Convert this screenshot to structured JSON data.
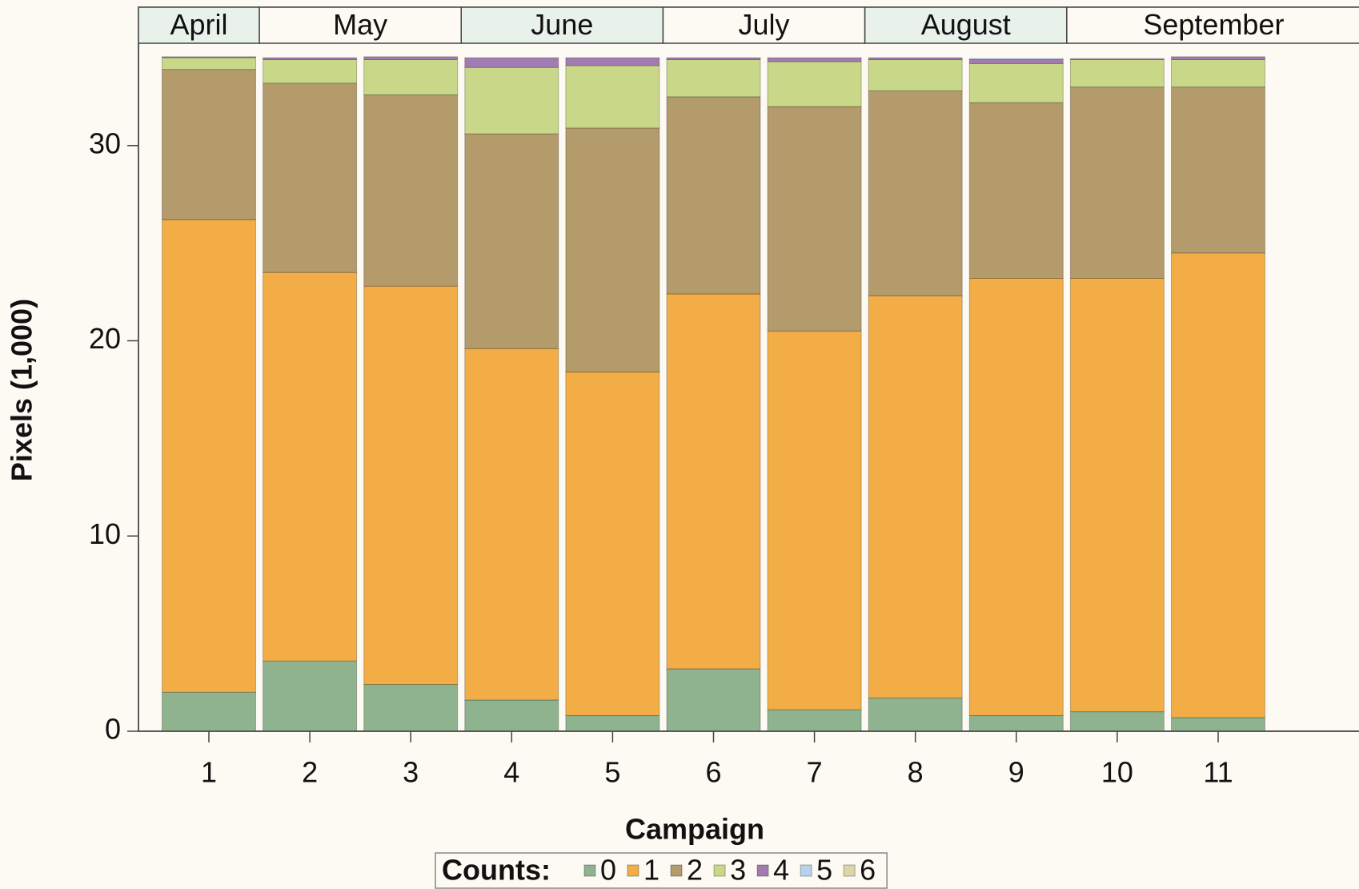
{
  "chart_data": {
    "type": "stacked_bar",
    "x_label": "Campaign",
    "y_label": "Pixels (1,000)",
    "legend_title": "Counts:",
    "categories": [
      "1",
      "2",
      "3",
      "4",
      "5",
      "6",
      "7",
      "8",
      "9",
      "10",
      "11"
    ],
    "panels": [
      {
        "label": "April",
        "size": 1
      },
      {
        "label": "May",
        "size": 2
      },
      {
        "label": "June",
        "size": 2
      },
      {
        "label": "July",
        "size": 2
      },
      {
        "label": "August",
        "size": 2
      },
      {
        "label": "September",
        "size": 2
      }
    ],
    "series": [
      {
        "name": "0",
        "color": "#8fb38e",
        "values": [
          2.0,
          3.6,
          2.4,
          1.6,
          0.8,
          3.2,
          1.1,
          1.7,
          0.8,
          1.0,
          0.7
        ]
      },
      {
        "name": "1",
        "color": "#f2ad47",
        "values": [
          24.2,
          19.9,
          20.4,
          18.0,
          17.6,
          19.2,
          19.4,
          20.6,
          22.4,
          22.2,
          23.8
        ]
      },
      {
        "name": "2",
        "color": "#b39b6b",
        "values": [
          7.7,
          9.7,
          9.8,
          11.0,
          12.5,
          10.1,
          11.5,
          10.5,
          9.0,
          9.8,
          8.5
        ]
      },
      {
        "name": "3",
        "color": "#c9d788",
        "values": [
          0.6,
          1.2,
          1.8,
          3.4,
          3.2,
          1.9,
          2.3,
          1.6,
          2.0,
          1.4,
          1.4
        ]
      },
      {
        "name": "4",
        "color": "#a27cb0",
        "values": [
          0.05,
          0.1,
          0.15,
          0.5,
          0.4,
          0.1,
          0.2,
          0.1,
          0.2,
          0.05,
          0.15
        ]
      },
      {
        "name": "5",
        "color": "#b8d2ee",
        "values": [
          0,
          0,
          0,
          0,
          0,
          0,
          0,
          0,
          0.05,
          0,
          0
        ]
      },
      {
        "name": "6",
        "color": "#ddd4a8",
        "values": [
          0,
          0,
          0,
          0,
          0,
          0,
          0,
          0,
          0,
          0,
          0
        ]
      }
    ],
    "ylim": [
      0,
      35.2
    ],
    "yticks": [
      0,
      10,
      20,
      30
    ]
  }
}
